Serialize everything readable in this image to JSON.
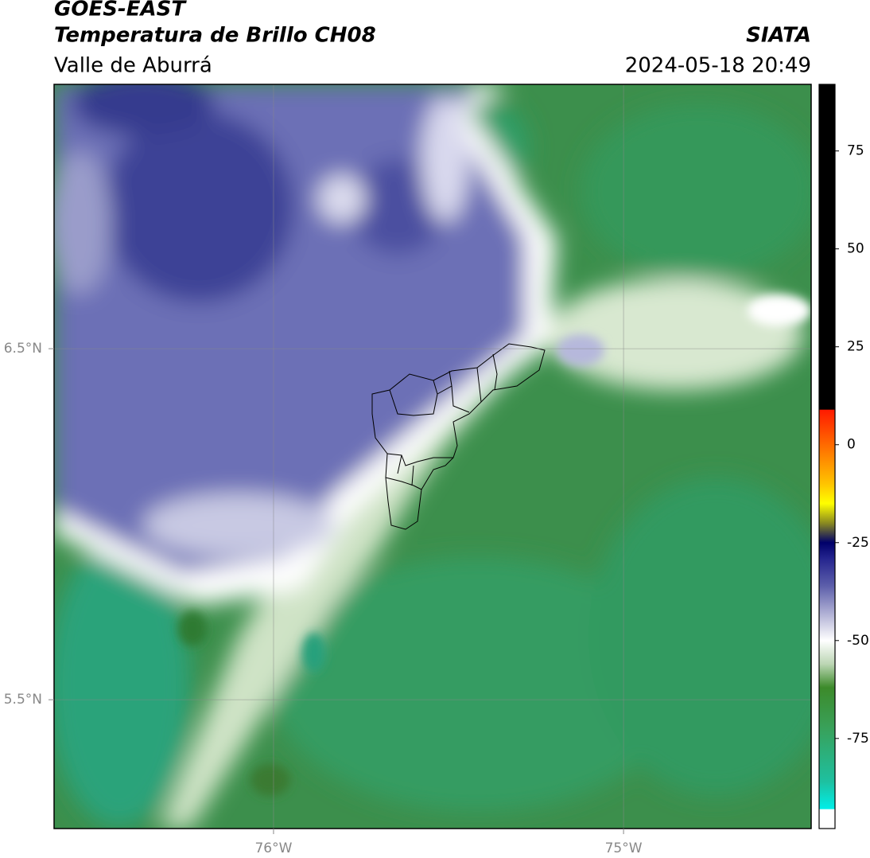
{
  "header": {
    "satellite": "GOES-EAST",
    "product": "Temperatura de Brillo CH08",
    "region": "Valle de Aburrá",
    "agency": "SIATA",
    "datetime": "2024-05-18 20:49"
  },
  "map": {
    "xlim": [
      -76.627,
      -74.464
    ],
    "ylim": [
      5.133,
      7.253
    ],
    "xticks": [
      {
        "value": -76,
        "label": "76°W"
      },
      {
        "value": -75,
        "label": "75°W"
      }
    ],
    "yticks": [
      {
        "value": 6.5,
        "label": "6.5°N"
      },
      {
        "value": 5.5,
        "label": "5.5°N"
      }
    ],
    "grid": true
  },
  "colorbar": {
    "lim": [
      -98,
      92
    ],
    "ticks": [
      75,
      50,
      25,
      0,
      -25,
      -50,
      -75
    ],
    "stops": [
      {
        "value": 92,
        "color": "#000000"
      },
      {
        "value": 9,
        "color": "#000000"
      },
      {
        "value": 8.9,
        "color": "#ff1a00"
      },
      {
        "value": 0,
        "color": "#ff6a00"
      },
      {
        "value": -10,
        "color": "#ffc400"
      },
      {
        "value": -15,
        "color": "#ffff00"
      },
      {
        "value": -20,
        "color": "#8a8a20"
      },
      {
        "value": -25,
        "color": "#00006a"
      },
      {
        "value": -29,
        "color": "#24248e"
      },
      {
        "value": -36,
        "color": "#5c5eaa"
      },
      {
        "value": -45,
        "color": "#c6c6e0"
      },
      {
        "value": -50,
        "color": "#ffffff"
      },
      {
        "value": -56,
        "color": "#bcd6b4"
      },
      {
        "value": -62,
        "color": "#3c8a2a"
      },
      {
        "value": -72,
        "color": "#39a058"
      },
      {
        "value": -86,
        "color": "#1ec0a0"
      },
      {
        "value": -93,
        "color": "#00eee8"
      },
      {
        "value": -93.1,
        "color": "#ffffff"
      },
      {
        "value": -98,
        "color": "#ffffff"
      }
    ]
  }
}
